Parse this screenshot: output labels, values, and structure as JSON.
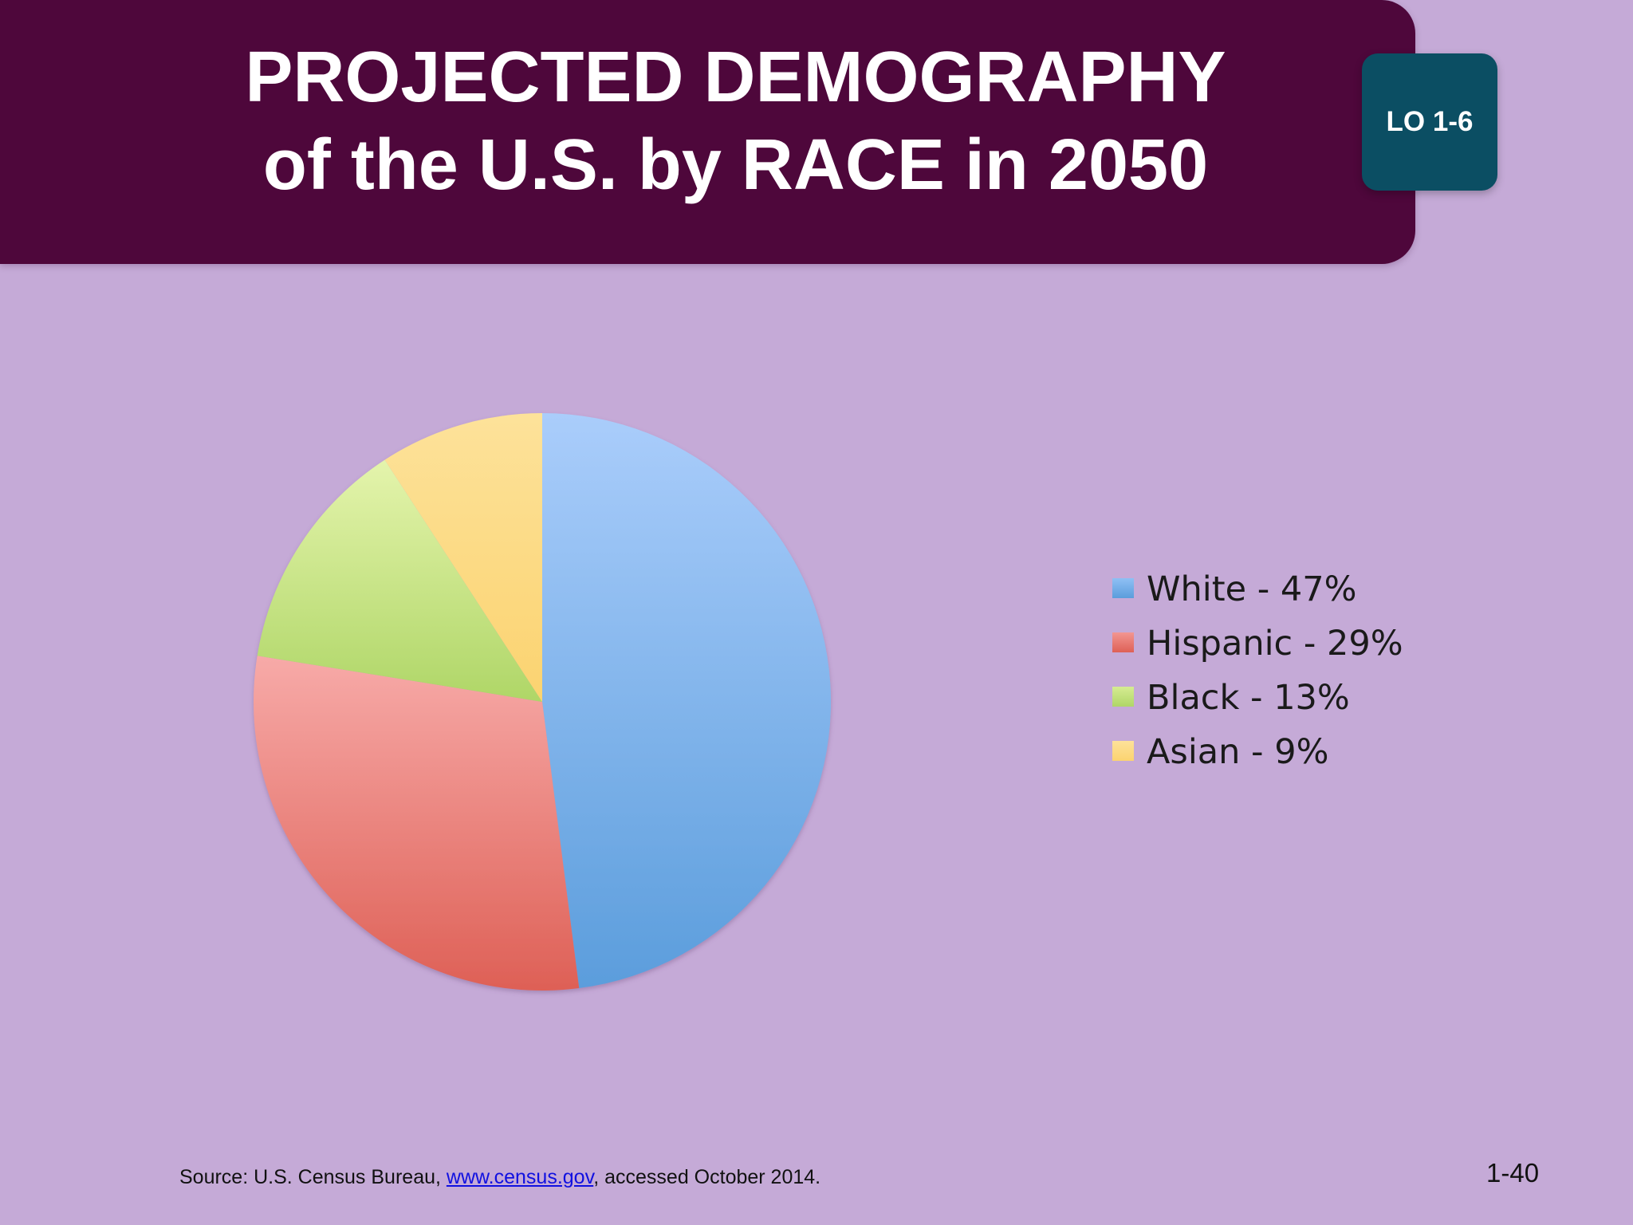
{
  "header": {
    "title_line_1": "PROJECTED DEMOGRAPHY",
    "title_line_2": "of the U.S. by RACE in 2050",
    "badge": "LO 1-6"
  },
  "chart_data": {
    "type": "pie",
    "slices": [
      {
        "label": "White - 47%",
        "value": 47,
        "color": "#6fa8e4"
      },
      {
        "label": "Hispanic - 29%",
        "value": 29,
        "color": "#ec807b"
      },
      {
        "label": "Black - 13%",
        "value": 13,
        "color": "#c5e082"
      },
      {
        "label": "Asian - 9%",
        "value": 9,
        "color": "#fcd87a"
      }
    ],
    "legend_position": "right"
  },
  "footer": {
    "source_prefix": "Source: U.S. Census Bureau, ",
    "source_link": "www.census.gov",
    "source_suffix": ", accessed October 2014.",
    "page_number": "1-40"
  }
}
